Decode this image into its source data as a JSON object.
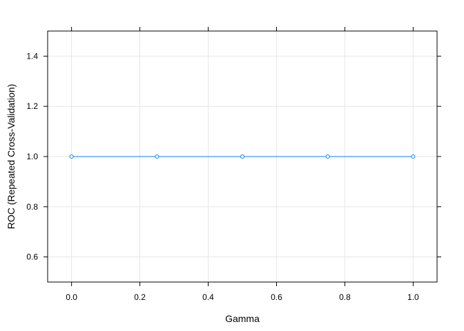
{
  "chart_data": {
    "type": "line",
    "title": "",
    "xlabel": "Gamma",
    "ylabel": "ROC (Repeated Cross-Validation)",
    "xlim": [
      -0.07,
      1.07
    ],
    "ylim": [
      0.5,
      1.5
    ],
    "xticks": [
      0.0,
      0.2,
      0.4,
      0.6,
      0.8,
      1.0
    ],
    "xtick_labels": [
      "0.0",
      "0.2",
      "0.4",
      "0.6",
      "0.8",
      "1.0"
    ],
    "yticks": [
      0.6,
      0.8,
      1.0,
      1.2,
      1.4
    ],
    "ytick_labels": [
      "0.6",
      "0.8",
      "1.0",
      "1.2",
      "1.4"
    ],
    "grid": true,
    "series": [
      {
        "x": [
          0.0,
          0.25,
          0.5,
          0.75,
          1.0
        ],
        "y": [
          1.0,
          1.0,
          1.0,
          1.0,
          1.0
        ],
        "color": "#0080ff",
        "marker": "open-circle"
      }
    ]
  }
}
